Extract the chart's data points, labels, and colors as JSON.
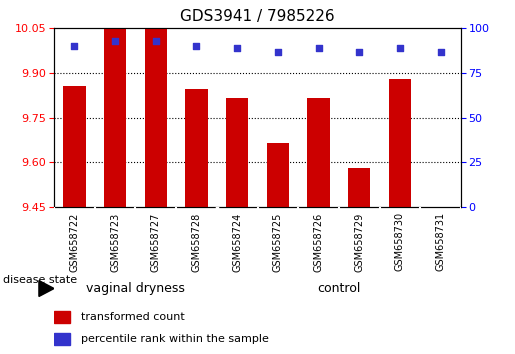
{
  "title": "GDS3941 / 7985226",
  "samples": [
    "GSM658722",
    "GSM658723",
    "GSM658727",
    "GSM658728",
    "GSM658724",
    "GSM658725",
    "GSM658726",
    "GSM658729",
    "GSM658730",
    "GSM658731"
  ],
  "bar_values": [
    9.855,
    10.05,
    10.05,
    9.845,
    9.815,
    9.665,
    9.815,
    9.58,
    9.88,
    9.45
  ],
  "percentile_values": [
    90,
    93,
    93,
    90,
    89,
    87,
    89,
    87,
    89,
    87
  ],
  "bar_color": "#CC0000",
  "percentile_color": "#3333CC",
  "ylim_left": [
    9.45,
    10.05
  ],
  "ylim_right": [
    0,
    100
  ],
  "yticks_left": [
    9.45,
    9.6,
    9.75,
    9.9,
    10.05
  ],
  "yticks_right": [
    0,
    25,
    50,
    75,
    100
  ],
  "grid_values": [
    9.6,
    9.75,
    9.9
  ],
  "legend_bar_label": "transformed count",
  "legend_pct_label": "percentile rank within the sample",
  "disease_state_label": "disease state",
  "group_label_vaginal": "vaginal dryness",
  "group_label_control": "control",
  "group_boundary": 4,
  "background_color": "#ffffff",
  "plot_bg_color": "#ffffff",
  "tick_label_area_color": "#cccccc",
  "group_area_color": "#66EE66",
  "title_fontsize": 11,
  "tick_fontsize": 8,
  "label_fontsize": 7,
  "legend_fontsize": 8
}
